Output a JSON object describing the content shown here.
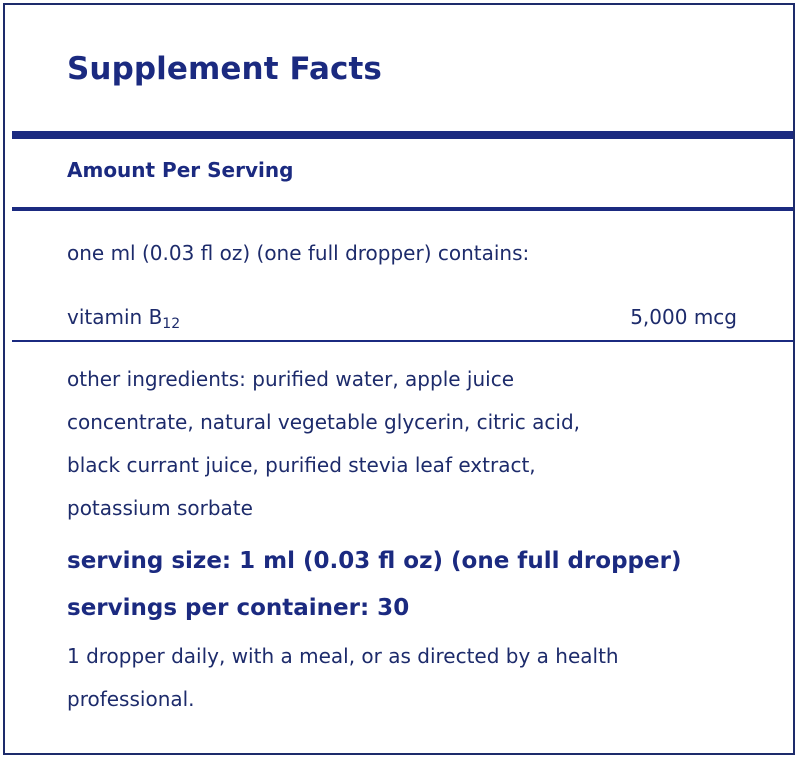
{
  "label": {
    "title": "Supplement Facts",
    "amount_per_serving": "Amount Per Serving",
    "serving_description": "one ml (0.03 fl oz) (one full dropper) contains:",
    "nutrient": {
      "name": "vitamin B",
      "subscript": "12",
      "amount": "5,000 mcg"
    },
    "other_ingredients_lines": [
      "other ingredients: purified water, apple juice",
      "concentrate, natural vegetable glycerin, citric acid,",
      "black currant juice, purified stevia leaf extract,",
      "potassium sorbate"
    ],
    "serving_size": "serving size: 1 ml (0.03 fl oz) (one full dropper)",
    "servings_per_container": "servings per container: 30",
    "directions_lines": [
      "1 dropper daily, with a meal, or as directed by a health",
      "professional."
    ]
  },
  "colors": {
    "primary": "#1b2a80",
    "text": "#1d2b6b",
    "background": "#ffffff"
  }
}
